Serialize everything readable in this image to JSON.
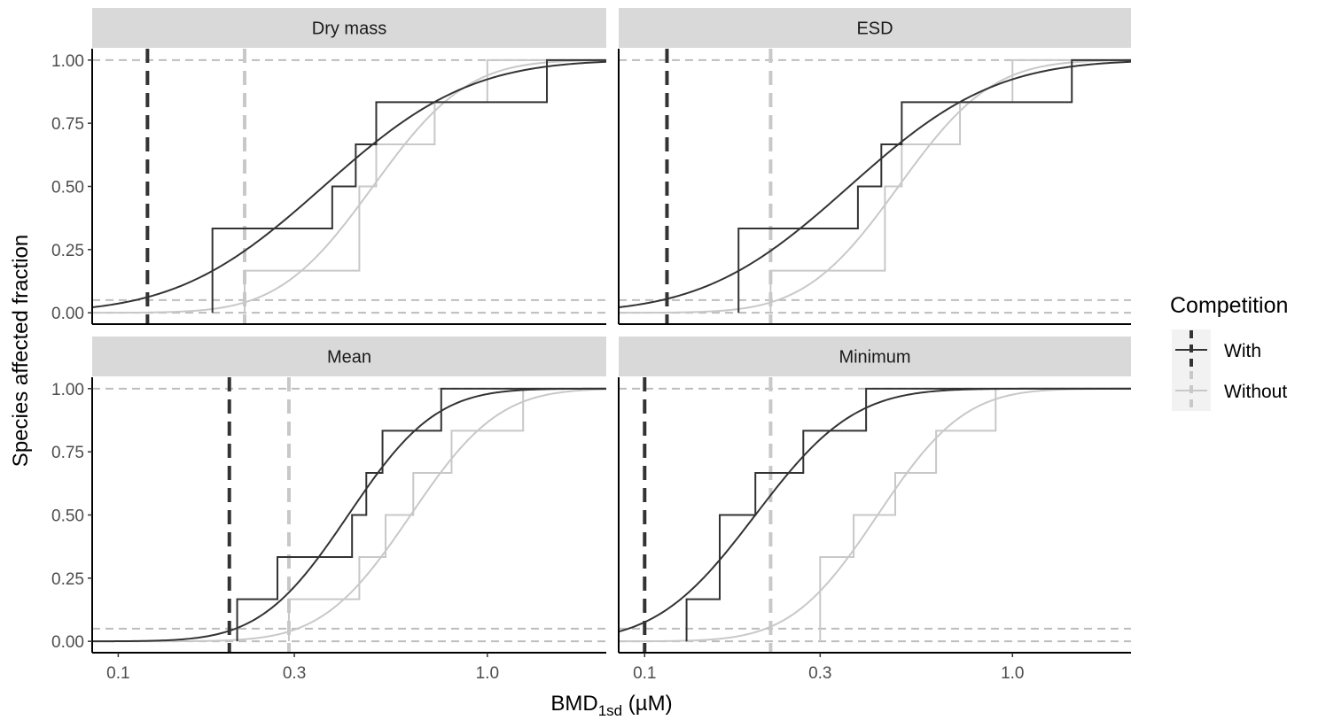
{
  "chart_data": {
    "type": "line",
    "title": "",
    "x_scale": "log10",
    "xlim": [
      0.085,
      2.1
    ],
    "ylim": [
      -0.045,
      1.045
    ],
    "x_ticks": [
      0.1,
      0.3,
      1.0
    ],
    "x_tick_labels": [
      "0.1",
      "0.3",
      "1.0"
    ],
    "y_ticks": [
      0,
      0.25,
      0.5,
      0.75,
      1
    ],
    "y_tick_labels": [
      "0.00",
      "0.25",
      "0.50",
      "0.75",
      "1.00"
    ],
    "xlabel": {
      "main": "BMD",
      "subscript": "1sd",
      "unit": " (µM)"
    },
    "ylabel": "Species affected fraction",
    "hlines": [
      0,
      0.05,
      1
    ],
    "grid": false,
    "legend": {
      "title": "Competition",
      "position": "right",
      "entries": [
        {
          "name": "With",
          "color": "#333333"
        },
        {
          "name": "Without",
          "color": "#c8c8c8"
        }
      ]
    },
    "panels": [
      {
        "name": "Dry mass",
        "series": [
          {
            "name": "With",
            "color": "#333333",
            "ecdf_x": [
              0.18,
              0.18,
              0.38,
              0.44,
              0.5,
              1.45
            ],
            "ecdf_y": [
              0.1667,
              0.3333,
              0.5,
              0.6667,
              0.8333,
              1.0
            ],
            "fit": {
              "median": 0.36,
              "sdlog10": 0.31
            },
            "hc5": 0.12
          },
          {
            "name": "Without",
            "color": "#c8c8c8",
            "ecdf_x": [
              0.22,
              0.22,
              0.45,
              0.5,
              0.72,
              1.0
            ],
            "ecdf_y": [
              0.1667,
              0.1667,
              0.5,
              0.6667,
              0.8333,
              1.0
            ],
            "fit": {
              "median": 0.49,
              "sdlog10": 0.2
            },
            "hc5": 0.22
          }
        ]
      },
      {
        "name": "ESD",
        "series": [
          {
            "name": "With",
            "color": "#333333",
            "ecdf_x": [
              0.18,
              0.18,
              0.38,
              0.44,
              0.5,
              1.45
            ],
            "ecdf_y": [
              0.1667,
              0.3333,
              0.5,
              0.6667,
              0.8333,
              1.0
            ],
            "fit": {
              "median": 0.36,
              "sdlog10": 0.31
            },
            "hc5": 0.115
          },
          {
            "name": "Without",
            "color": "#c8c8c8",
            "ecdf_x": [
              0.22,
              0.22,
              0.45,
              0.5,
              0.72,
              1.0
            ],
            "ecdf_y": [
              0.1667,
              0.1667,
              0.5,
              0.6667,
              0.8333,
              1.0
            ],
            "fit": {
              "median": 0.49,
              "sdlog10": 0.2
            },
            "hc5": 0.22
          }
        ]
      },
      {
        "name": "Mean",
        "series": [
          {
            "name": "With",
            "color": "#333333",
            "ecdf_x": [
              0.21,
              0.27,
              0.43,
              0.47,
              0.52,
              0.75
            ],
            "ecdf_y": [
              0.1667,
              0.3333,
              0.5,
              0.6667,
              0.8333,
              1.0
            ],
            "fit": {
              "median": 0.42,
              "sdlog10": 0.186
            },
            "hc5": 0.2
          },
          {
            "name": "Without",
            "color": "#c8c8c8",
            "ecdf_x": [
              0.29,
              0.45,
              0.53,
              0.63,
              0.8,
              1.25
            ],
            "ecdf_y": [
              0.1667,
              0.3333,
              0.5,
              0.6667,
              0.8333,
              1.0
            ],
            "fit": {
              "median": 0.62,
              "sdlog10": 0.187
            },
            "hc5": 0.29
          }
        ]
      },
      {
        "name": "Minimum",
        "series": [
          {
            "name": "With",
            "color": "#333333",
            "ecdf_x": [
              0.13,
              0.16,
              0.2,
              0.27,
              0.4,
              0.4
            ],
            "ecdf_y": [
              0.1667,
              0.5,
              0.6667,
              0.8333,
              1.0,
              1.0
            ],
            "fit": {
              "median": 0.2,
              "sdlog10": 0.21
            },
            "hc5": 0.1
          },
          {
            "name": "Without",
            "color": "#c8c8c8",
            "ecdf_x": [
              0.3,
              0.37,
              0.48,
              0.62,
              0.9,
              0.9
            ],
            "ecdf_y": [
              0.3333,
              0.5,
              0.6667,
              0.8333,
              1.0,
              1.0
            ],
            "fit": {
              "median": 0.43,
              "sdlog10": 0.185
            },
            "hc5": 0.22
          }
        ]
      }
    ]
  }
}
